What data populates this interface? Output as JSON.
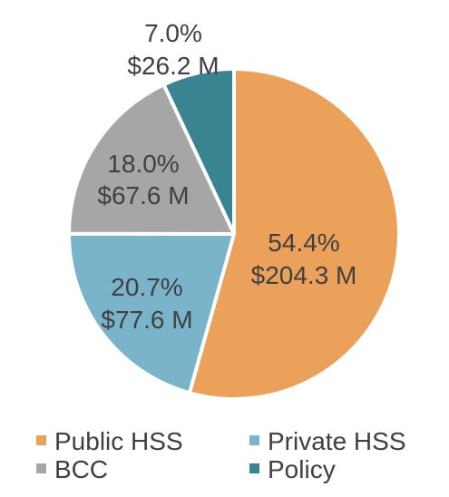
{
  "chart_data": {
    "type": "pie",
    "title": "",
    "slices": [
      {
        "name": "Public HSS",
        "percent": 54.4,
        "value_label": "$204.3 M",
        "pct_label": "54.4%",
        "color": "#EBA15A"
      },
      {
        "name": "Private HSS",
        "percent": 20.7,
        "value_label": "$77.6 M",
        "pct_label": "20.7%",
        "color": "#7AB4CB"
      },
      {
        "name": "BCC",
        "percent": 18.0,
        "value_label": "$67.6 M",
        "pct_label": "18.0%",
        "color": "#A6A6A6"
      },
      {
        "name": "Policy",
        "percent": 7.0,
        "value_label": "$26.2 M",
        "pct_label": "7.0%",
        "color": "#3A8390"
      }
    ],
    "legend_position": "bottom",
    "start_angle": "12 o'clock, clockwise"
  }
}
